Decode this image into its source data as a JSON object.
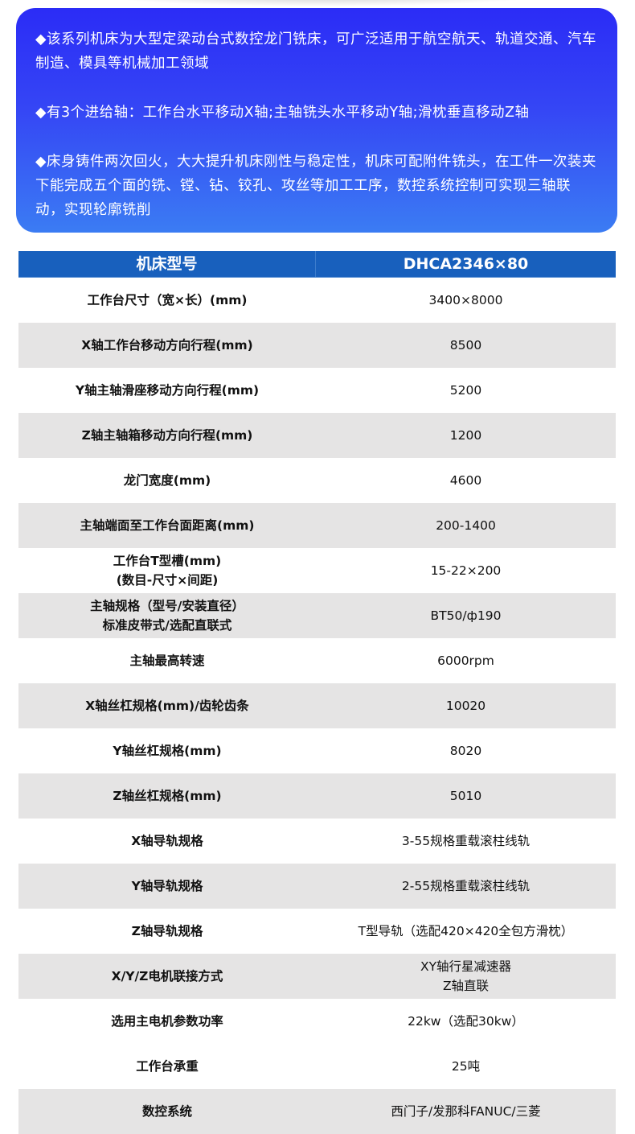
{
  "intro": [
    "◆该系列机床为大型定梁动台式数控龙门铣床，可广泛适用于航空航天、轨道交通、汽车制造、模具等机械加工领域",
    "◆有3个进给轴：工作台水平移动X轴;主轴铣头水平移动Y轴;滑枕垂直移动Z轴",
    "◆床身铸件两次回火，大大提升机床刚性与稳定性，机床可配附件铣头，在工件一次装夹下能完成五个面的铣、镗、钻、铰孔、攻丝等加工工序，数控系统控制可实现三轴联动，实现轮廓铣削"
  ],
  "table": {
    "header": [
      "机床型号",
      "DHCA2346×80"
    ],
    "rows": [
      {
        "k": "工作台尺寸（宽×长）(mm)",
        "v": "3400×8000",
        "gray": false
      },
      {
        "k": "X轴工作台移动方向行程(mm)",
        "v": "8500",
        "gray": true
      },
      {
        "k": "Y轴主轴滑座移动方向行程(mm)",
        "v": "5200",
        "gray": false
      },
      {
        "k": "Z轴主轴箱移动方向行程(mm)",
        "v": "1200",
        "gray": true
      },
      {
        "k": "龙门宽度(mm)",
        "v": "4600",
        "gray": false
      },
      {
        "k": "主轴端面至工作台面距离(mm)",
        "v": "200-1400",
        "gray": true
      },
      {
        "k": "工作台T型槽(mm)\n(数目-尺寸×间距)",
        "v": "15-22×200",
        "gray": false
      },
      {
        "k": "主轴规格（型号/安装直径）\n标准皮带式/选配直联式",
        "v": "BT50/ф190",
        "gray": true
      },
      {
        "k": "主轴最高转速",
        "v": "6000rpm",
        "gray": false
      },
      {
        "k": "X轴丝杠规格(mm)/齿轮齿条",
        "v": "10020",
        "gray": true
      },
      {
        "k": "Y轴丝杠规格(mm)",
        "v": "8020",
        "gray": false
      },
      {
        "k": "Z轴丝杠规格(mm)",
        "v": "5010",
        "gray": true
      },
      {
        "k": "X轴导轨规格",
        "v": "3-55规格重载滚柱线轨",
        "gray": false
      },
      {
        "k": "Y轴导轨规格",
        "v": "2-55规格重载滚柱线轨",
        "gray": true
      },
      {
        "k": "Z轴导轨规格",
        "v": "T型导轨（选配420×420全包方滑枕）",
        "gray": false
      },
      {
        "k": "X/Y/Z电机联接方式",
        "v": "XY轴行星减速器\nZ轴直联",
        "gray": true
      },
      {
        "k": "选用主电机参数功率",
        "v": "22kw（选配30kw）",
        "gray": false
      },
      {
        "k": "工作台承重",
        "v": "25吨",
        "gray": false
      },
      {
        "k": "数控系统",
        "v": "西门子/发那科FANUC/三菱",
        "gray": true
      }
    ]
  },
  "colors": {
    "header": "#1860bd",
    "gray_row": "#e5e4e4",
    "intro_top": "#2b2cf6",
    "intro_bottom": "#3b7cf3"
  }
}
